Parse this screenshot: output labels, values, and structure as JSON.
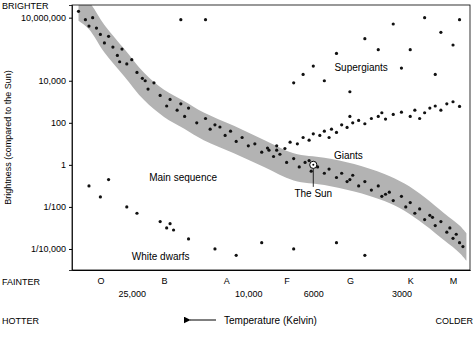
{
  "chart_data": {
    "type": "scatter",
    "log": true,
    "color": "#111111",
    "x_label": "Temperature (Kelvin)",
    "y_label": "Brightness (compared to the Sun)",
    "x_axis_ends": {
      "left": "HOTTER",
      "right": "COLDER"
    },
    "y_axis_ends": {
      "top": "BRIGHTER",
      "bottom": "FAINTER"
    },
    "xlim": [
      40000,
      1750
    ],
    "ylim": [
      1e-05,
      40000000
    ],
    "xticks": [
      {
        "value": 25000,
        "label": "25,000"
      },
      {
        "value": 10000,
        "label": "10,000"
      },
      6000,
      3000
    ],
    "class_ticks": [
      {
        "value": 32000,
        "label": "O"
      },
      {
        "value": 19400,
        "label": "B"
      },
      {
        "value": 11900,
        "label": "A"
      },
      {
        "value": 7400,
        "label": "F"
      },
      {
        "value": 4500,
        "label": "G"
      },
      {
        "value": 2800,
        "label": "K"
      },
      {
        "value": 2000,
        "label": "M"
      }
    ],
    "yticks": [
      {
        "value": 10000000,
        "label": "10,000,000"
      },
      {
        "value": 10000,
        "label": "10,000"
      },
      100,
      1,
      {
        "value": 0.01,
        "label": "1/100"
      },
      {
        "value": 0.0001,
        "label": "1/10,000"
      }
    ],
    "x": [
      38000,
      36000,
      34000,
      33000,
      32000,
      31000,
      30000,
      29000,
      28000,
      27000,
      26000,
      25000,
      24000,
      23000,
      22000,
      21000,
      20000,
      19000,
      18500,
      17500,
      16500,
      16000,
      15000,
      14000,
      13500,
      13000,
      12000,
      11500,
      11000,
      10500,
      10000,
      9500,
      9000,
      8600,
      8200,
      7800,
      7400,
      7000,
      6700,
      6400,
      6100,
      5800,
      5500,
      5300,
      5000,
      4800,
      4600,
      4400,
      4200,
      4000,
      3800,
      3600,
      3500,
      3300,
      3200,
      3000,
      2900,
      2800,
      2700,
      2600,
      2500,
      2400,
      2300,
      2200,
      2100,
      2050,
      2000,
      1950,
      1900,
      1850,
      35000,
      27500,
      22500,
      17000,
      12500,
      8000,
      6200,
      4500,
      3400,
      2350,
      8500,
      8000,
      7500,
      7200,
      6800,
      6500,
      6200,
      6000,
      5700,
      5500,
      5200,
      5000,
      4800,
      4600,
      4400,
      4200,
      4000,
      3800,
      3600,
      3400,
      3200,
      3000,
      2800,
      2700,
      2500,
      2400,
      2300,
      2200,
      2100,
      2000,
      1900,
      5300,
      3500,
      2600,
      4500,
      6500,
      6000,
      5500,
      5000,
      4500,
      4000,
      3600,
      3200,
      2800,
      2500,
      2200,
      2000,
      1900,
      7000,
      3000,
      2300,
      17000,
      14000,
      35000,
      32000,
      30000,
      26000,
      24000,
      20000,
      19000,
      18500,
      18000,
      16000,
      13000,
      11000,
      9000,
      7000,
      5000,
      4000
    ],
    "y": [
      20000000,
      8000000,
      10000000,
      3200000,
      1600000,
      630000,
      1300000,
      400000,
      160000,
      320000,
      63000,
      100000,
      25000,
      13000,
      4000,
      8000,
      2000,
      630,
      1300,
      400,
      200,
      500,
      100,
      160,
      50,
      80,
      25,
      40,
      13,
      20,
      8,
      10,
      4,
      6.3,
      2.5,
      3.2,
      1.3,
      2,
      0.8,
      1.3,
      0.5,
      0.8,
      0.4,
      0.63,
      0.25,
      0.4,
      0.16,
      0.32,
      0.1,
      0.16,
      0.063,
      0.1,
      0.032,
      0.05,
      0.02,
      0.032,
      0.01,
      0.016,
      0.005,
      0.008,
      0.0025,
      0.004,
      0.0013,
      0.002,
      0.00063,
      0.001,
      0.00032,
      0.0005,
      0.0002,
      0.00013,
      4000000,
      80000,
      10000,
      800,
      63,
      5,
      1.6,
      0.2,
      0.04,
      0.0032,
      5,
      8,
      6,
      12,
      10,
      20,
      15,
      30,
      25,
      40,
      50,
      35,
      80,
      60,
      100,
      130,
      90,
      160,
      200,
      150,
      250,
      320,
      200,
      400,
      300,
      500,
      630,
      400,
      800,
      1000,
      600,
      20,
      300,
      160,
      200,
      20000,
      50000,
      10000,
      200000,
      3000,
      1000000,
      300000,
      5000000,
      300000,
      10000000,
      2000000,
      500000,
      8000000,
      8000,
      40000,
      20000,
      8000000,
      8000000,
      0.1,
      0.03,
      0.2,
      0.01,
      0.005,
      0.002,
      0.001,
      0.0016,
      0.0008,
      0.0003,
      0.0001,
      5e-05,
      0.0002,
      0.0001,
      0.0002,
      5e-05
    ],
    "band": {
      "color": "#b3b3b3",
      "x": [
        38000,
        35000,
        31000,
        26500,
        22700,
        19400,
        16600,
        14200,
        11200,
        8800,
        7000,
        5500,
        4350,
        3430,
        2930,
        2500,
        2140,
        1900,
        1800
      ],
      "y_upper": [
        140000000,
        56000000,
        4500000,
        320000,
        24000,
        3700,
        1100,
        310,
        72,
        15,
        3.6,
        2.2,
        1.1,
        0.37,
        0.13,
        0.029,
        0.0049,
        0.0013,
        0.00056
      ],
      "y_lower": [
        7100000,
        2800000,
        220000,
        16000,
        1200,
        190,
        54,
        15,
        3.6,
        0.76,
        0.18,
        0.11,
        0.054,
        0.019,
        0.0065,
        0.0014,
        0.00025,
        6.5e-05,
        2.8e-05
      ]
    },
    "sun": {
      "x": 6000,
      "y": 1,
      "label": "The Sun",
      "label_y": 0.03
    },
    "annotations": [
      {
        "text": "Supergiants",
        "x": 5080,
        "y": 28000
      },
      {
        "text": "Giants",
        "x": 5100,
        "y": 2
      },
      {
        "text": "Main sequence",
        "x": 21800,
        "y": 0.17
      },
      {
        "text": "White dwarfs",
        "x": 25000,
        "y": 3e-05
      }
    ]
  }
}
